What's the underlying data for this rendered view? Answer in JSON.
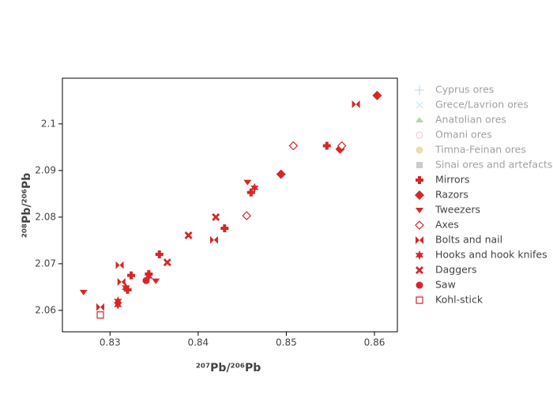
{
  "chart_data": {
    "type": "scatter",
    "x_label": "²⁰⁷Pb/²⁰⁶Pb",
    "y_label": "²⁰⁸Pb/²⁰⁶Pb",
    "xlim": [
      0.8246,
      0.8626
    ],
    "ylim": [
      2.0554,
      2.1098
    ],
    "xticks": [
      0.83,
      0.84,
      0.85,
      0.86
    ],
    "yticks": [
      2.06,
      2.07,
      2.08,
      2.09,
      2.1
    ],
    "grid": false,
    "series": [
      {
        "name": "Cyprus ores",
        "color": "#7fa8d8",
        "symbol": "cross-thin",
        "visible": "legendonly",
        "x": [],
        "y": []
      },
      {
        "name": "Grece/Lavrion ores",
        "color": "#8ecde6",
        "symbol": "x-thin",
        "visible": "legendonly",
        "x": [],
        "y": []
      },
      {
        "name": "Anatolian ores",
        "color": "#5cb85c",
        "symbol": "triangle-up",
        "visible": "legendonly",
        "x": [],
        "y": []
      },
      {
        "name": "Omani ores",
        "color": "#e8a0b0",
        "symbol": "circle-open",
        "visible": "legendonly",
        "x": [],
        "y": []
      },
      {
        "name": "Timna-Feinan ores",
        "color": "#d4c050",
        "symbol": "circle",
        "visible": "legendonly",
        "x": [],
        "y": []
      },
      {
        "name": "Sinai ores and artefacts",
        "color": "#999999",
        "symbol": "square",
        "visible": "legendonly",
        "x": [],
        "y": []
      },
      {
        "name": "Mirrors",
        "color": "#d62728",
        "symbol": "cross",
        "visible": true,
        "x": [
          0.8546,
          0.8356,
          0.843,
          0.846,
          0.8324,
          0.832,
          0.8344
        ],
        "y": [
          2.0953,
          2.072,
          2.0776,
          2.0853,
          2.0675,
          2.0644,
          2.0678
        ]
      },
      {
        "name": "Razors",
        "color": "#d62728",
        "symbol": "diamond",
        "visible": true,
        "x": [
          0.8603,
          0.8494,
          0.8561
        ],
        "y": [
          2.1061,
          2.0892,
          2.0946
        ]
      },
      {
        "name": "Tweezers",
        "color": "#d62728",
        "symbol": "triangle-down",
        "visible": true,
        "x": [
          0.827,
          0.8352,
          0.8456
        ],
        "y": [
          2.0639,
          2.0663,
          2.0875
        ]
      },
      {
        "name": "Axes",
        "color": "#d62728",
        "symbol": "diamond-open",
        "visible": true,
        "x": [
          0.8508,
          0.8563,
          0.8455
        ],
        "y": [
          2.0953,
          2.0953,
          2.0803
        ]
      },
      {
        "name": "Bolts and nail",
        "color": "#d62728",
        "symbol": "bowtie",
        "visible": true,
        "x": [
          0.8579,
          0.8289,
          0.8418,
          0.8311,
          0.8313
        ],
        "y": [
          2.1042,
          2.0607,
          2.0751,
          2.0697,
          2.0661
        ]
      },
      {
        "name": "Hooks and hook knifes",
        "color": "#d62728",
        "symbol": "star",
        "visible": true,
        "x": [
          0.8464,
          0.8309,
          0.8309,
          0.8318,
          0.8344
        ],
        "y": [
          2.0863,
          2.062,
          2.0612,
          2.0649,
          2.0673
        ]
      },
      {
        "name": "Daggers",
        "color": "#d62728",
        "symbol": "x",
        "visible": true,
        "x": [
          0.8389,
          0.842,
          0.8365
        ],
        "y": [
          2.0761,
          2.08,
          2.0703
        ]
      },
      {
        "name": "Saw",
        "color": "#d62728",
        "symbol": "circle",
        "visible": true,
        "x": [
          0.8341
        ],
        "y": [
          2.0664
        ]
      },
      {
        "name": "Kohl-stick",
        "color": "#d62728",
        "symbol": "square-open",
        "visible": true,
        "x": [
          0.8289
        ],
        "y": [
          2.059
        ]
      }
    ]
  }
}
